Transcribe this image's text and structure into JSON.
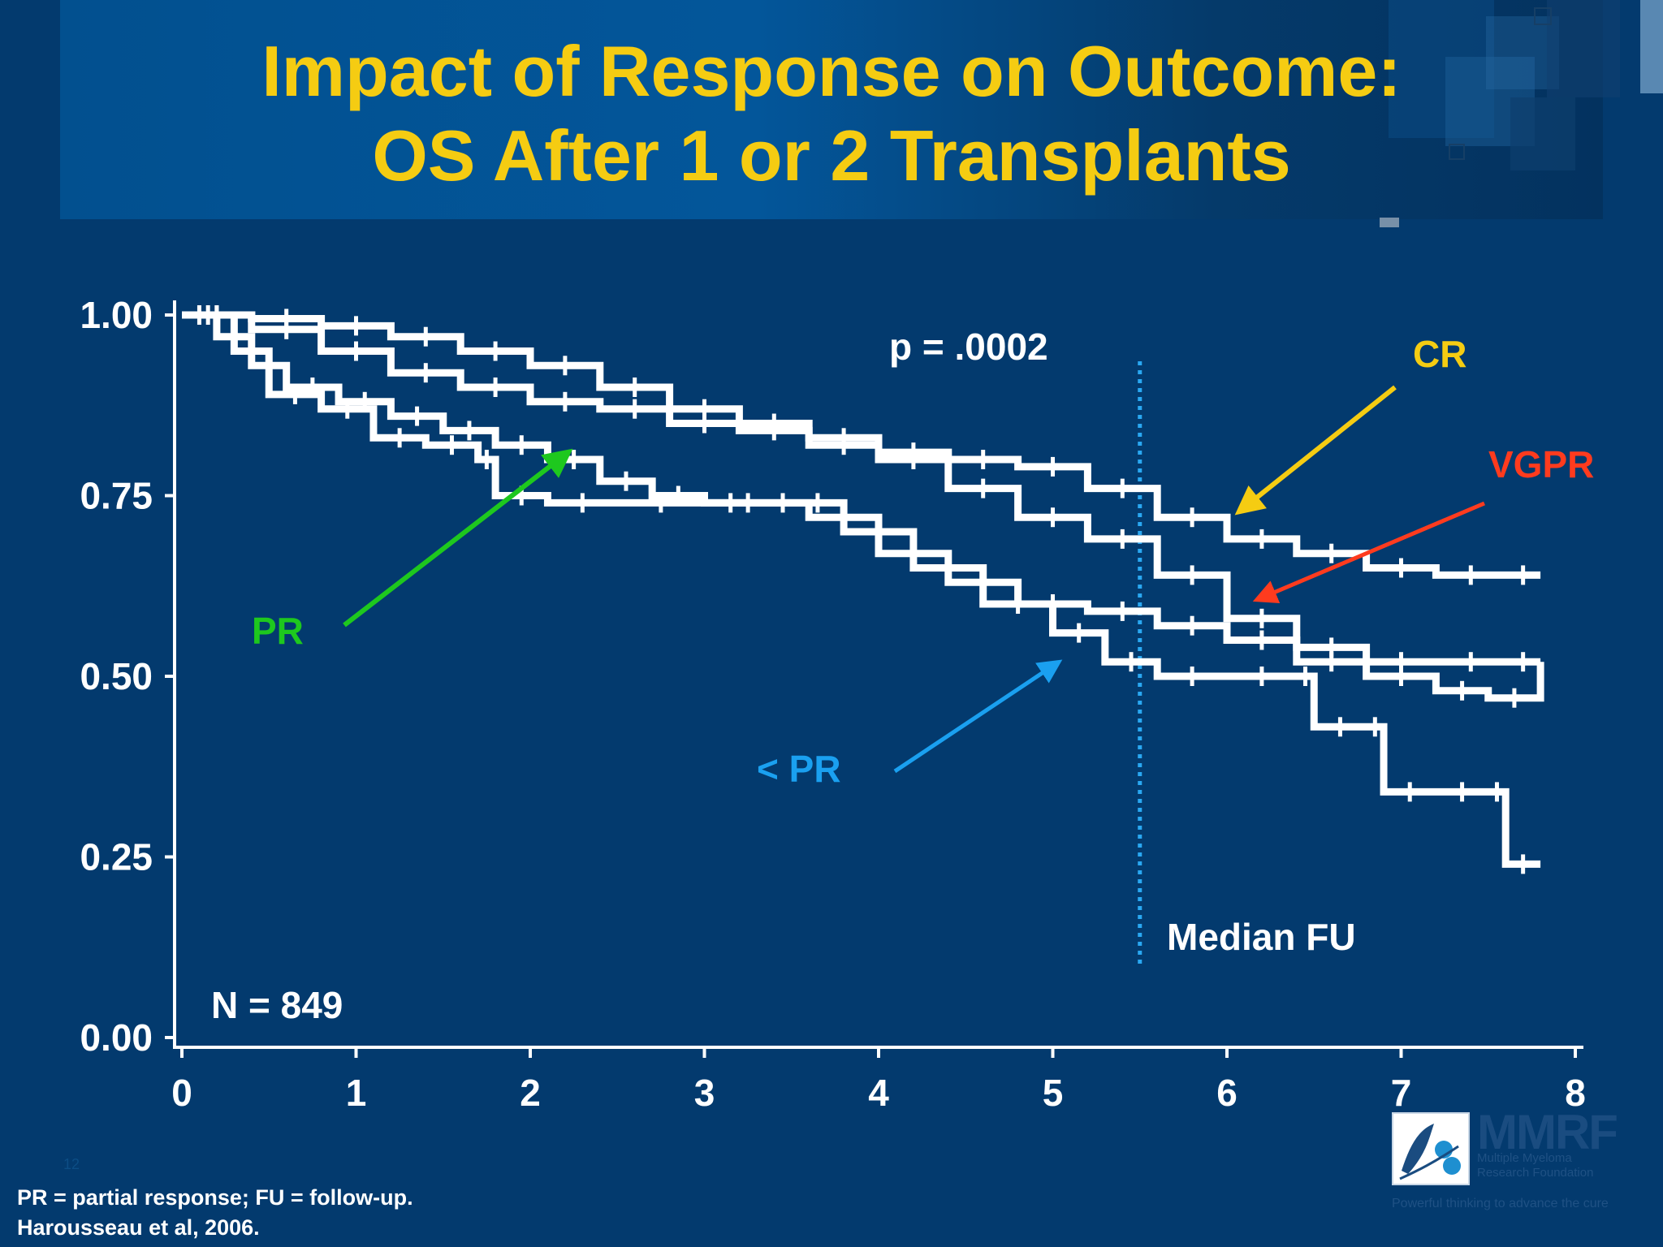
{
  "title": {
    "line1": "Impact of Response on Outcome:",
    "line2": "OS After 1 or 2 Transplants"
  },
  "footnotes": {
    "abbreviations": "PR = partial response; FU = follow-up.",
    "citation": "Harousseau et al, 2006."
  },
  "slide_number": "12",
  "logo": {
    "name": "MMRF",
    "line1": "Multiple Myeloma",
    "line2": "Research Foundation",
    "tagline": "Powerful thinking to advance the cure"
  },
  "colors": {
    "background": "#033a6e",
    "title": "#f5cc12",
    "curve": "#ffffff",
    "CR": "#f5cc12",
    "VGPR": "#ff3b1e",
    "PR": "#1ec81e",
    "lt_PR": "#1aa0f0",
    "median_line": "#2aa8f2"
  },
  "chart_data": {
    "type": "line",
    "subtype": "kaplan-meier",
    "xlim": [
      0,
      8
    ],
    "ylim": [
      0,
      1
    ],
    "x_ticks": [
      "0",
      "1",
      "2",
      "3",
      "4",
      "5",
      "6",
      "7",
      "8"
    ],
    "y_ticks": [
      "0.00",
      "0.25",
      "0.50",
      "0.75",
      "1.00"
    ],
    "p_value_label": "p = .0002",
    "n_label": "N = 849",
    "median_fu": {
      "x": 5.5,
      "label": "Median FU"
    },
    "series": [
      {
        "name": "CR",
        "x": [
          0,
          0.4,
          0.8,
          1.2,
          1.6,
          2.0,
          2.4,
          2.8,
          3.2,
          3.6,
          4.0,
          4.4,
          4.8,
          5.2,
          5.6,
          6.0,
          6.4,
          6.8,
          7.2,
          7.6,
          7.8
        ],
        "y": [
          1.0,
          0.995,
          0.985,
          0.97,
          0.95,
          0.93,
          0.9,
          0.87,
          0.85,
          0.83,
          0.81,
          0.8,
          0.79,
          0.76,
          0.72,
          0.69,
          0.67,
          0.65,
          0.64,
          0.64,
          0.64
        ]
      },
      {
        "name": "VGPR",
        "x": [
          0,
          0.4,
          0.8,
          1.2,
          1.6,
          2.0,
          2.4,
          2.8,
          3.2,
          3.6,
          4.0,
          4.4,
          4.8,
          5.2,
          5.6,
          6.0,
          6.4,
          6.8,
          7.2,
          7.6,
          7.8
        ],
        "y": [
          1.0,
          0.98,
          0.95,
          0.92,
          0.9,
          0.88,
          0.87,
          0.85,
          0.84,
          0.82,
          0.8,
          0.76,
          0.72,
          0.69,
          0.64,
          0.58,
          0.54,
          0.52,
          0.52,
          0.52,
          0.52
        ]
      },
      {
        "name": "PR",
        "x": [
          0,
          0.2,
          0.4,
          0.6,
          0.9,
          1.2,
          1.5,
          1.8,
          2.1,
          2.4,
          2.7,
          3.0,
          3.3,
          3.6,
          4.0,
          4.4,
          4.8,
          5.2,
          5.6,
          6.0,
          6.4,
          6.8,
          7.2,
          7.5,
          7.8
        ],
        "y": [
          1.0,
          0.97,
          0.93,
          0.9,
          0.88,
          0.86,
          0.84,
          0.82,
          0.8,
          0.77,
          0.75,
          0.74,
          0.74,
          0.72,
          0.67,
          0.63,
          0.6,
          0.59,
          0.57,
          0.55,
          0.52,
          0.5,
          0.48,
          0.47,
          0.52
        ]
      },
      {
        "name": "< PR",
        "x": [
          0,
          0.3,
          0.5,
          0.8,
          1.1,
          1.4,
          1.7,
          1.8,
          2.1,
          2.5,
          3.0,
          3.5,
          3.8,
          4.2,
          4.6,
          5.0,
          5.3,
          5.6,
          6.0,
          6.4,
          6.5,
          6.8,
          6.9,
          7.2,
          7.5,
          7.6,
          7.8
        ],
        "y": [
          1.0,
          0.95,
          0.89,
          0.87,
          0.83,
          0.82,
          0.8,
          0.75,
          0.74,
          0.74,
          0.74,
          0.74,
          0.7,
          0.65,
          0.6,
          0.56,
          0.52,
          0.5,
          0.5,
          0.5,
          0.43,
          0.43,
          0.34,
          0.34,
          0.34,
          0.24,
          0.24
        ]
      }
    ]
  }
}
